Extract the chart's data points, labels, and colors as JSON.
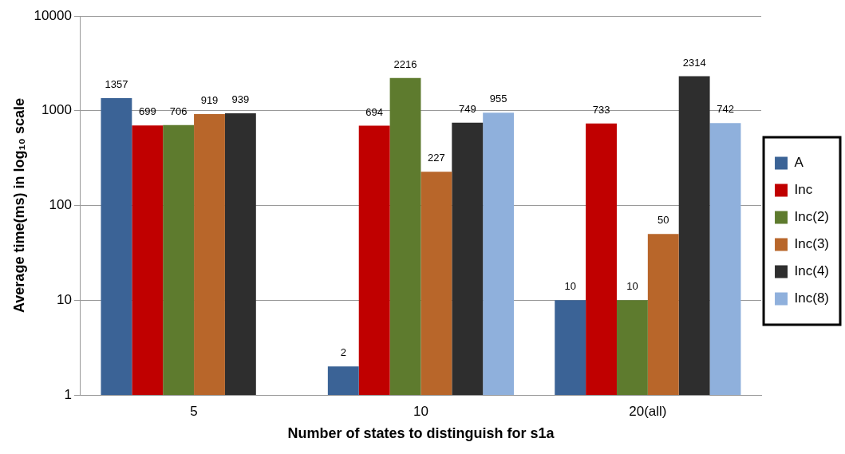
{
  "chart_data": {
    "type": "bar",
    "xlabel": "Number of states to distinguish for s1a",
    "ylabel": "Average time(ms) in log₁₀ scale",
    "categories": [
      "5",
      "10",
      "20(all)"
    ],
    "series": [
      {
        "name": "A",
        "color": "#3b6396",
        "values": [
          1357,
          2,
          10
        ],
        "value_labels": [
          "1357",
          "2",
          "10"
        ]
      },
      {
        "name": "Inc",
        "color": "#c00000",
        "values": [
          699,
          694,
          733
        ],
        "value_labels": [
          "699",
          "694",
          "733"
        ]
      },
      {
        "name": "Inc(2)",
        "color": "#5e7b2e",
        "values": [
          706,
          2216,
          10
        ],
        "value_labels": [
          "706",
          "2216",
          "10"
        ]
      },
      {
        "name": "Inc(3)",
        "color": "#b8662a",
        "values": [
          919,
          227,
          50
        ],
        "value_labels": [
          "919",
          "227",
          "50"
        ]
      },
      {
        "name": "Inc(4)",
        "color": "#2e2e2e",
        "values": [
          939,
          749,
          2314
        ],
        "value_labels": [
          "939",
          "749",
          "2314"
        ]
      },
      {
        "name": "Inc(8)",
        "color": "#8fb0dc",
        "values": [
          null,
          955,
          742
        ],
        "value_labels": [
          null,
          "955",
          "742"
        ]
      }
    ],
    "log": "y",
    "ylim": [
      1,
      10000
    ],
    "yticks": [
      1,
      10,
      100,
      1000,
      10000
    ],
    "grid": "y",
    "legend": "right"
  }
}
